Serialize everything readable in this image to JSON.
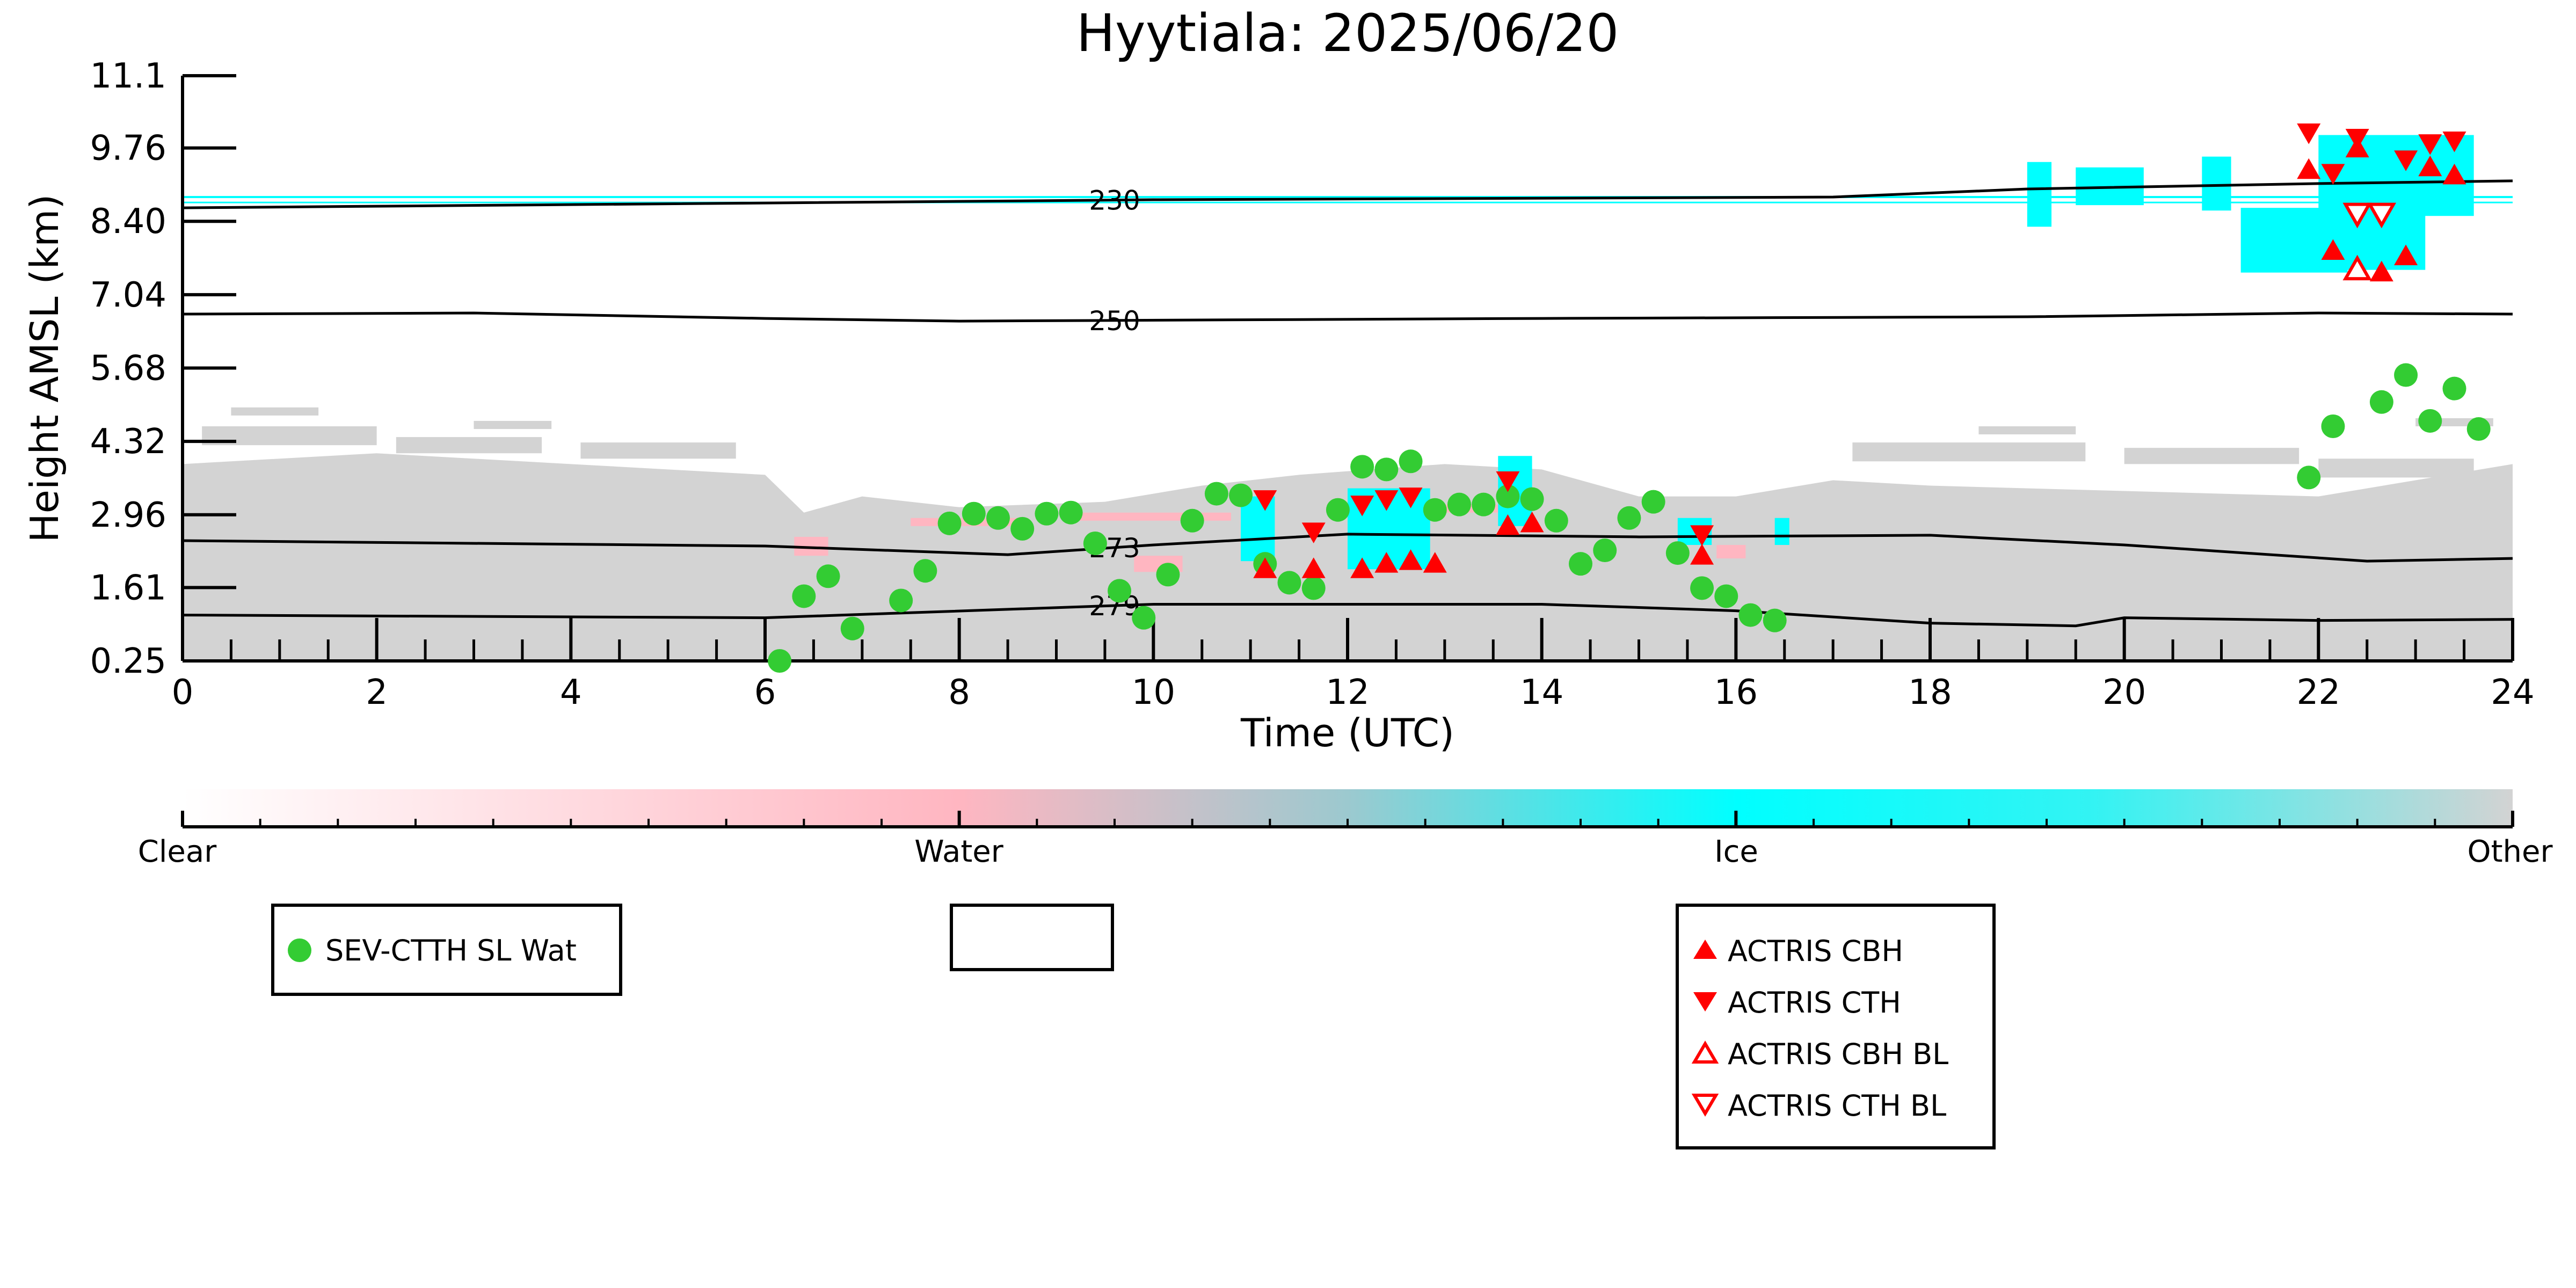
{
  "chart_data": {
    "type": "scatter",
    "title": "Hyytiala: 2025/06/20",
    "xlabel": "Time (UTC)",
    "ylabel": "Height AMSL (km)",
    "xlim": [
      0,
      24
    ],
    "ylim": [
      0.25,
      11.1
    ],
    "x_ticks": [
      "0",
      "2",
      "4",
      "6",
      "8",
      "10",
      "12",
      "14",
      "16",
      "18",
      "20",
      "22",
      "24"
    ],
    "y_ticks": [
      "0.25",
      "1.61",
      "2.96",
      "4.32",
      "5.68",
      "7.04",
      "8.40",
      "9.76",
      "11.1"
    ],
    "y_tick_values": [
      0.25,
      1.61,
      2.96,
      4.32,
      5.68,
      7.04,
      8.4,
      9.76,
      11.1
    ],
    "colorbar": {
      "labels": [
        "Clear",
        "Water",
        "Ice",
        "Other"
      ],
      "colors": [
        "#ffffff",
        "#ffb6c1",
        "#00ffff",
        "#d3d3d3"
      ]
    },
    "colors": {
      "other": "#d3d3d3",
      "water": "#ffb6c1",
      "ice": "#00ffff",
      "sev": "#33cc33",
      "actris": "#ff0000",
      "isotherm": "#000000"
    },
    "isotherms": [
      {
        "label": "230",
        "points": [
          [
            0,
            8.65
          ],
          [
            10,
            8.8
          ],
          [
            17,
            8.85
          ],
          [
            19,
            9.0
          ],
          [
            22,
            9.1
          ],
          [
            24,
            9.15
          ]
        ]
      },
      {
        "label": "250",
        "points": [
          [
            0,
            6.68
          ],
          [
            3,
            6.7
          ],
          [
            6,
            6.6
          ],
          [
            8,
            6.55
          ],
          [
            14,
            6.6
          ],
          [
            19,
            6.63
          ],
          [
            22,
            6.7
          ],
          [
            24,
            6.68
          ]
        ]
      },
      {
        "label": "273",
        "points": [
          [
            0,
            2.48
          ],
          [
            6,
            2.38
          ],
          [
            8.5,
            2.22
          ],
          [
            10,
            2.4
          ],
          [
            12,
            2.6
          ],
          [
            15,
            2.55
          ],
          [
            18,
            2.58
          ],
          [
            20,
            2.4
          ],
          [
            22.5,
            2.1
          ],
          [
            24,
            2.15
          ]
        ]
      },
      {
        "label": "279",
        "points": [
          [
            0,
            1.1
          ],
          [
            6,
            1.05
          ],
          [
            10,
            1.3
          ],
          [
            14,
            1.3
          ],
          [
            16,
            1.18
          ],
          [
            18,
            0.95
          ],
          [
            19.5,
            0.9
          ],
          [
            20,
            1.05
          ],
          [
            22,
            1.0
          ],
          [
            24,
            1.02
          ]
        ]
      }
    ],
    "series": [
      {
        "name": "SEV-CTTH SL Wat",
        "marker": "circle",
        "points": [
          [
            6.15,
            0.25
          ],
          [
            6.4,
            1.45
          ],
          [
            6.65,
            1.82
          ],
          [
            6.9,
            0.85
          ],
          [
            7.4,
            1.37
          ],
          [
            7.65,
            1.92
          ],
          [
            7.9,
            2.8
          ],
          [
            8.15,
            2.98
          ],
          [
            8.4,
            2.9
          ],
          [
            8.65,
            2.7
          ],
          [
            8.9,
            2.98
          ],
          [
            9.15,
            3.0
          ],
          [
            9.4,
            2.43
          ],
          [
            9.65,
            1.55
          ],
          [
            9.9,
            1.05
          ],
          [
            10.15,
            1.85
          ],
          [
            10.4,
            2.85
          ],
          [
            10.65,
            3.35
          ],
          [
            10.9,
            3.32
          ],
          [
            11.15,
            2.05
          ],
          [
            11.4,
            1.7
          ],
          [
            11.65,
            1.6
          ],
          [
            11.9,
            3.05
          ],
          [
            12.15,
            3.85
          ],
          [
            12.4,
            3.8
          ],
          [
            12.65,
            3.95
          ],
          [
            12.9,
            3.05
          ],
          [
            13.15,
            3.15
          ],
          [
            13.4,
            3.15
          ],
          [
            13.65,
            3.3
          ],
          [
            13.9,
            3.25
          ],
          [
            14.15,
            2.85
          ],
          [
            14.4,
            2.05
          ],
          [
            14.65,
            2.3
          ],
          [
            14.9,
            2.9
          ],
          [
            15.15,
            3.2
          ],
          [
            15.4,
            2.25
          ],
          [
            15.65,
            1.6
          ],
          [
            15.9,
            1.45
          ],
          [
            16.15,
            1.1
          ],
          [
            16.4,
            1.0
          ],
          [
            21.9,
            3.65
          ],
          [
            22.15,
            4.6
          ],
          [
            22.65,
            5.05
          ],
          [
            22.9,
            5.55
          ],
          [
            23.15,
            4.7
          ],
          [
            23.4,
            5.3
          ],
          [
            23.65,
            4.55
          ]
        ]
      },
      {
        "name": "ACTRIS CBH",
        "marker": "triangle-up",
        "points": [
          [
            11.15,
            1.95
          ],
          [
            11.65,
            1.95
          ],
          [
            12.15,
            1.95
          ],
          [
            12.4,
            2.05
          ],
          [
            12.65,
            2.1
          ],
          [
            12.9,
            2.05
          ],
          [
            13.65,
            2.75
          ],
          [
            13.9,
            2.8
          ],
          [
            15.65,
            2.2
          ],
          [
            21.9,
            9.35
          ],
          [
            22.15,
            7.85
          ],
          [
            22.4,
            9.75
          ],
          [
            22.65,
            7.45
          ],
          [
            22.9,
            7.75
          ],
          [
            23.15,
            9.4
          ],
          [
            23.4,
            9.25
          ]
        ]
      },
      {
        "name": "ACTRIS CTH",
        "marker": "triangle-down",
        "points": [
          [
            11.15,
            3.25
          ],
          [
            11.65,
            2.65
          ],
          [
            12.15,
            3.15
          ],
          [
            12.4,
            3.25
          ],
          [
            12.65,
            3.3
          ],
          [
            13.65,
            3.6
          ],
          [
            15.65,
            2.6
          ],
          [
            21.9,
            10.05
          ],
          [
            22.15,
            9.3
          ],
          [
            22.4,
            9.95
          ],
          [
            22.9,
            9.55
          ],
          [
            23.15,
            9.85
          ],
          [
            23.4,
            9.9
          ]
        ]
      },
      {
        "name": "ACTRIS CBH BL",
        "marker": "triangle-up-open",
        "points": [
          [
            22.4,
            7.5
          ]
        ]
      },
      {
        "name": "ACTRIS CTH BL",
        "marker": "triangle-down-open",
        "points": [
          [
            22.4,
            8.55
          ],
          [
            22.65,
            8.55
          ]
        ]
      }
    ]
  }
}
